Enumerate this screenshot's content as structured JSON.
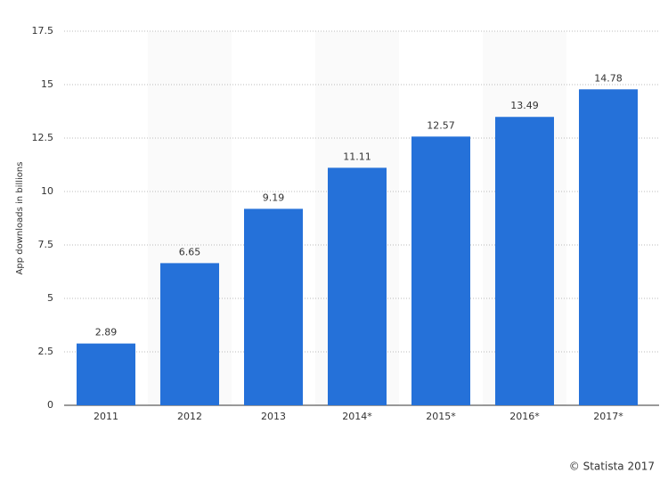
{
  "chart_data": {
    "type": "bar",
    "y_label": "App downloads in billions",
    "categories": [
      "2011",
      "2012",
      "2013",
      "2014*",
      "2015*",
      "2016*",
      "2017*"
    ],
    "values": [
      2.89,
      6.65,
      9.19,
      11.11,
      12.57,
      13.49,
      14.78
    ],
    "color": "#2571d9",
    "ylim": [
      0,
      17.5
    ],
    "yticks": [
      0,
      2.5,
      5,
      7.5,
      10,
      12.5,
      15,
      17.5
    ],
    "grid": true,
    "credit": "© Statista 2017"
  }
}
